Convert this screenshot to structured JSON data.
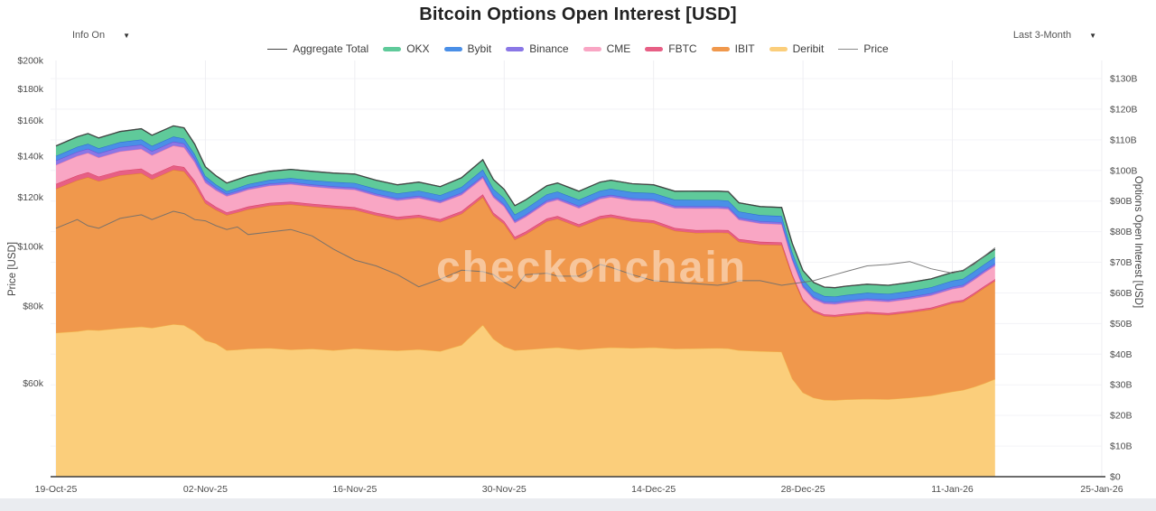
{
  "title": "Bitcoin Options Open Interest [USD]",
  "controls": {
    "info_label": "Info On",
    "range_label": "Last 3-Month"
  },
  "watermark": "checkonchain",
  "chart_data": {
    "type": "area",
    "stacked": true,
    "title": "Bitcoin Options Open Interest [USD]",
    "x_unit": "days since 19-Oct-25",
    "x_ticks": {
      "days": [
        0,
        14,
        28,
        42,
        56,
        70,
        84,
        98
      ],
      "labels": [
        "19-Oct-25",
        "02-Nov-25",
        "16-Nov-25",
        "30-Nov-25",
        "14-Dec-25",
        "28-Dec-25",
        "11-Jan-26",
        "25-Jan-26"
      ]
    },
    "left_axis": {
      "label": "Price [USD]",
      "scale": "log",
      "tick_values_k": [
        200,
        180,
        160,
        140,
        120,
        100,
        80,
        60
      ],
      "tick_labels": [
        "$200k",
        "$180k",
        "$160k",
        "$140k",
        "$120k",
        "$100k",
        "$80k",
        "$60k"
      ]
    },
    "right_axis": {
      "label": "Options Open Interest [USD]",
      "scale": "linear",
      "unit": "billion USD",
      "tick_values": [
        0,
        10,
        20,
        30,
        40,
        50,
        60,
        70,
        80,
        90,
        100,
        110,
        120,
        130
      ],
      "tick_labels": [
        "$0",
        "$10B",
        "$20B",
        "$30B",
        "$40B",
        "$50B",
        "$60B",
        "$70B",
        "$80B",
        "$90B",
        "$100B",
        "$110B",
        "$120B",
        "$130B"
      ]
    },
    "days": [
      0,
      2,
      3,
      4,
      6,
      8,
      9,
      11,
      12,
      13,
      14,
      15,
      16,
      17,
      18,
      20,
      22,
      24,
      26,
      28,
      30,
      32,
      34,
      36,
      38,
      40,
      41,
      42,
      43,
      44,
      46,
      47,
      49,
      51,
      52,
      54,
      56,
      58,
      60,
      62,
      63,
      64,
      66,
      68,
      69,
      70,
      71,
      72,
      73,
      74,
      76,
      78,
      80,
      82,
      84,
      85,
      86,
      87,
      88
    ],
    "series": [
      {
        "name": "Deribit",
        "color": "#FBCE7B",
        "stroke": "#F2B24A",
        "values": [
          47,
          47.5,
          48,
          47.8,
          48.5,
          49,
          48.6,
          49.8,
          49.5,
          47.5,
          44.5,
          43.5,
          41.3,
          41.5,
          41.8,
          42,
          41.5,
          41.8,
          41.3,
          41.9,
          41.5,
          41.2,
          41.6,
          41,
          43,
          49.6,
          45,
          42.5,
          41.3,
          41.5,
          42,
          42.2,
          41.5,
          42,
          42.2,
          42,
          42.2,
          41.8,
          41.9,
          42,
          41.9,
          41.3,
          41,
          40.8,
          32,
          27.5,
          25.8,
          25.1,
          25,
          25.2,
          25.4,
          25.3,
          25.8,
          26.5,
          27.8,
          28.3,
          29.3,
          30.5,
          31.9
        ]
      },
      {
        "name": "IBIT",
        "color": "#F0984C",
        "stroke": "#E07F2E",
        "values": [
          47,
          49.3,
          49.8,
          48.7,
          49.9,
          50.1,
          48.5,
          50.4,
          50.2,
          47.9,
          44.8,
          43.6,
          44.1,
          44.8,
          45.5,
          46.5,
          47.4,
          46.4,
          46.3,
          45.2,
          43.8,
          42.7,
          43,
          42.2,
          42.8,
          41.7,
          40.3,
          40,
          36.1,
          37.6,
          41.4,
          42,
          40,
          42.2,
          42.5,
          41.4,
          40.6,
          38.5,
          37.7,
          37.7,
          37.7,
          35.4,
          34.8,
          34.8,
          33.5,
          29.9,
          28,
          27.3,
          27.2,
          27.4,
          27.8,
          27.5,
          27.8,
          28.1,
          28.8,
          28.8,
          30,
          31.2,
          32
        ]
      },
      {
        "name": "FBTC",
        "color": "#E75F85",
        "stroke": "#D84367",
        "values": [
          1.6,
          1.6,
          1.6,
          1.5,
          1.5,
          1.5,
          1.45,
          1.4,
          1.4,
          1.3,
          1.1,
          1,
          0.9,
          0.9,
          0.9,
          0.9,
          0.9,
          0.9,
          0.9,
          0.9,
          0.9,
          0.9,
          0.9,
          0.9,
          0.9,
          0.9,
          0.9,
          0.9,
          0.9,
          0.9,
          0.9,
          0.9,
          0.9,
          0.9,
          0.9,
          0.9,
          0.9,
          0.9,
          0.9,
          0.9,
          0.9,
          0.9,
          0.9,
          0.9,
          0.6,
          0.6,
          0.6,
          0.6,
          0.6,
          0.6,
          0.6,
          0.6,
          0.6,
          0.6,
          0.6,
          0.6,
          0.6,
          0.6,
          0.6
        ]
      },
      {
        "name": "CME",
        "color": "#F9A6C4",
        "stroke": "#F27BA8",
        "values": [
          6.2,
          6.3,
          6.3,
          6.2,
          6.3,
          6.4,
          6.4,
          6.5,
          6.4,
          6,
          5.6,
          5.4,
          5.3,
          5.4,
          5.5,
          5.6,
          5.7,
          5.6,
          5.6,
          5.7,
          5.5,
          5.4,
          5.5,
          5.3,
          5.3,
          5.3,
          5,
          4.8,
          4.6,
          4.8,
          5.2,
          5.3,
          5.3,
          5.6,
          5.7,
          5.9,
          6.2,
          6.5,
          7.1,
          7,
          6.9,
          6.3,
          6,
          5.9,
          4.5,
          3.8,
          3.6,
          3.5,
          3.5,
          3.6,
          3.7,
          3.7,
          3.8,
          4,
          4.1,
          4.2,
          4.3,
          4.35,
          4.4
        ]
      },
      {
        "name": "Binance",
        "color": "#8A77E6",
        "stroke": "#6A55D8",
        "values": [
          1.4,
          1.4,
          1.4,
          1.4,
          1.4,
          1.4,
          1.35,
          1.3,
          1.3,
          1.2,
          1,
          0.85,
          0.7,
          0.7,
          0.7,
          0.7,
          0.7,
          0.7,
          0.7,
          0.7,
          0.7,
          0.7,
          0.7,
          0.7,
          0.7,
          0.7,
          0.7,
          0.7,
          0.7,
          0.7,
          0.7,
          0.7,
          0.7,
          0.7,
          0.7,
          0.7,
          0.7,
          0.7,
          0.7,
          0.7,
          0.7,
          0.7,
          0.7,
          0.7,
          0.7,
          0.7,
          0.7,
          0.7,
          0.7,
          0.7,
          0.7,
          0.7,
          0.7,
          0.7,
          0.7,
          0.7,
          0.7,
          0.7,
          0.7
        ]
      },
      {
        "name": "Bybit",
        "color": "#4A8FE7",
        "stroke": "#2D6ED0",
        "values": [
          1.5,
          1.6,
          1.6,
          1.6,
          1.65,
          1.7,
          1.7,
          1.65,
          1.6,
          1.4,
          1.2,
          1.05,
          0.9,
          1,
          1.1,
          1.2,
          1.3,
          1.4,
          1.45,
          1.5,
          1.55,
          1.6,
          1.7,
          1.8,
          1.9,
          2.1,
          2.05,
          2,
          2,
          2,
          2,
          2,
          2,
          2,
          2,
          2,
          2,
          2,
          2.05,
          2.05,
          2.05,
          2,
          2,
          2,
          1.95,
          1.9,
          1.85,
          1.8,
          1.8,
          1.8,
          1.85,
          1.9,
          1.9,
          1.95,
          2,
          2,
          2.05,
          2.05,
          2.1
        ]
      },
      {
        "name": "OKX",
        "color": "#5FCA9A",
        "stroke": "#2FA876",
        "values": [
          3.3,
          3.3,
          3.35,
          3.4,
          3.45,
          3.5,
          3.5,
          3.5,
          3.5,
          3.3,
          3,
          2.85,
          2.7,
          2.75,
          2.75,
          2.8,
          2.85,
          2.9,
          2.9,
          2.9,
          2.85,
          2.8,
          2.8,
          2.8,
          3,
          3.2,
          3.05,
          2.9,
          2.9,
          2.85,
          2.8,
          2.8,
          2.8,
          2.8,
          2.8,
          2.75,
          2.7,
          2.8,
          2.9,
          2.9,
          2.9,
          2.85,
          2.8,
          2.8,
          2.9,
          2.9,
          2.9,
          2.9,
          2.9,
          2.9,
          2.8,
          2.8,
          2.8,
          2.75,
          2.7,
          2.7,
          2.65,
          2.6,
          2.6
        ]
      }
    ],
    "aggregate": {
      "name": "Aggregate Total",
      "color": "#444444"
    },
    "price": {
      "name": "Price",
      "color": "#8a8a8a",
      "axis": "left",
      "unit": "USD (thousands)",
      "values_k": [
        107,
        110.5,
        108,
        107,
        111,
        112.5,
        110.5,
        114,
        113,
        110.5,
        110,
        108,
        106.5,
        107.5,
        104.5,
        105.5,
        106.5,
        104,
        99,
        95,
        93,
        90,
        86,
        88.5,
        91.5,
        91,
        90,
        87.5,
        85.5,
        90,
        90.5,
        89.5,
        89.5,
        93.5,
        92.5,
        90,
        88,
        87.5,
        87,
        86.5,
        87,
        88,
        88,
        86.5,
        87,
        87.5,
        88,
        89,
        90,
        91,
        93,
        93.5,
        94.5,
        92,
        90.5,
        91.5,
        93.5,
        96.5,
        99.5
      ]
    }
  }
}
